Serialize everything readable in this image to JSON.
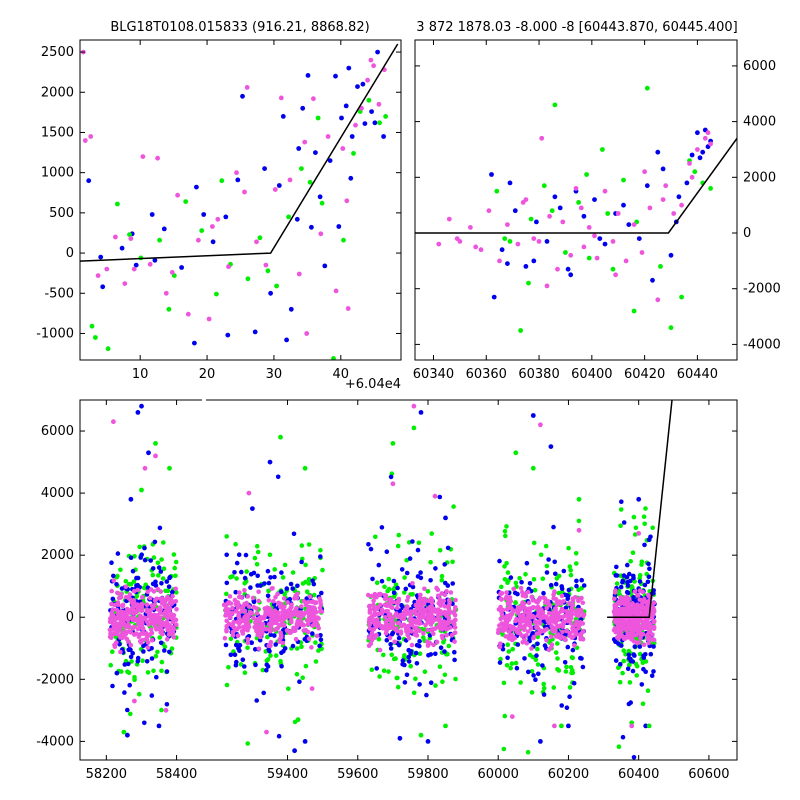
{
  "colors": {
    "blue": "#0000ee",
    "green": "#00ee00",
    "magenta": "#ee55dd",
    "model": "#000000",
    "frame": "#000000"
  },
  "chart_data": [
    {
      "type": "scatter",
      "title": "BLG18T0108.015833 (916.21, 8868.82)",
      "x_offset_label": "+6.04e4",
      "xlim": [
        1,
        49
      ],
      "ylim": [
        -1330,
        2650
      ],
      "xticks": [
        10,
        20,
        30,
        40
      ],
      "yticks": [
        -1000,
        -500,
        0,
        500,
        1000,
        1500,
        2000,
        2500
      ],
      "y_axis_side": "left",
      "grid": false,
      "model_line": {
        "x": [
          1,
          29.5,
          48.5
        ],
        "y": [
          -100,
          0,
          2600
        ]
      },
      "series": [
        {
          "color": "blue",
          "x": [
            2.3,
            4.4,
            7.3,
            9.4,
            11.8,
            13.6,
            16.2,
            18.4,
            20.9,
            22.8,
            24.6,
            25.3,
            27.2,
            29.5,
            30.8,
            31.4,
            32.6,
            33.5,
            34.3,
            35.6,
            36.2,
            37.6,
            38.4,
            39.2,
            40.1,
            40.8,
            41.5,
            42.5,
            43.6,
            44.6,
            45.5,
            46.4,
            4.1,
            8.8,
            12.2,
            19.5,
            23.1,
            28.6,
            31.9,
            35.1,
            36.9,
            39.7,
            41.7,
            43.3,
            45.1,
            18.1,
            33.7,
            41.2
          ],
          "y": [
            900,
            -420,
            60,
            -150,
            480,
            300,
            -180,
            820,
            140,
            450,
            910,
            1950,
            -980,
            -500,
            840,
            1700,
            -700,
            420,
            1800,
            320,
            1250,
            -160,
            1150,
            2200,
            1680,
            1830,
            930,
            2070,
            1610,
            1760,
            2500,
            1450,
            -50,
            240,
            -90,
            480,
            -1020,
            1050,
            -1080,
            2210,
            700,
            330,
            1450,
            2100,
            1620,
            -1120,
            1300,
            2300
          ]
        },
        {
          "color": "green",
          "x": [
            2.8,
            5.2,
            6.6,
            8.4,
            10.1,
            12.9,
            14.3,
            16.8,
            19.2,
            21.4,
            23.5,
            26.1,
            27.9,
            30.4,
            32.2,
            34.1,
            35.4,
            37.2,
            38.9,
            40.4,
            41.9,
            42.9,
            44.2,
            45.8,
            46.7,
            3.3,
            15.1,
            22.2,
            29.1,
            36.6
          ],
          "y": [
            -910,
            -1190,
            610,
            230,
            -60,
            160,
            -700,
            640,
            280,
            -510,
            -140,
            -320,
            190,
            -410,
            450,
            1050,
            880,
            620,
            -1310,
            160,
            1240,
            1760,
            1900,
            1620,
            1700,
            -1050,
            -280,
            900,
            -220,
            1680
          ]
        },
        {
          "color": "magenta",
          "x": [
            1.5,
            2.6,
            3.7,
            5.0,
            6.3,
            7.7,
            8.6,
            10.4,
            11.5,
            12.6,
            13.9,
            15.6,
            17.2,
            18.7,
            20.3,
            21.6,
            23.2,
            24.4,
            26.0,
            27.4,
            28.8,
            30.2,
            31.1,
            32.4,
            33.8,
            34.6,
            35.9,
            37.0,
            38.1,
            39.3,
            40.3,
            41.1,
            42.2,
            43.1,
            44.0,
            44.9,
            45.7,
            46.5,
            1.8,
            9.1,
            14.8,
            25.6,
            34.9,
            40.9,
            44.5,
            20.8
          ],
          "y": [
            2500,
            1450,
            -280,
            -200,
            200,
            -380,
            180,
            1200,
            -140,
            1180,
            -500,
            720,
            -760,
            160,
            -820,
            420,
            -170,
            1000,
            2060,
            140,
            -150,
            790,
            1930,
            910,
            -260,
            1380,
            1920,
            240,
            1450,
            -470,
            1300,
            -690,
            1590,
            1800,
            2150,
            2330,
            1850,
            2280,
            1400,
            -200,
            -240,
            760,
            -1000,
            650,
            2400,
            330
          ]
        }
      ]
    },
    {
      "type": "scatter",
      "title": "3 872 1878.03 -8.000 -8 [60443.870, 60445.400]",
      "xlim": [
        60333,
        60455
      ],
      "ylim": [
        -4560,
        6930
      ],
      "xticks": [
        60340,
        60360,
        60380,
        60400,
        60420,
        60440
      ],
      "yticks": [
        -4000,
        -2000,
        0,
        2000,
        4000,
        6000
      ],
      "y_axis_side": "right",
      "grid": false,
      "model_line": {
        "x": [
          60333,
          60429,
          60455
        ],
        "y": [
          0,
          0,
          3400
        ]
      },
      "series": [
        {
          "color": "blue",
          "x": [
            60362,
            60366,
            60371,
            60375,
            60379,
            60383,
            60388,
            60392,
            60397,
            60401,
            60405,
            60409,
            60414,
            60418,
            60423,
            60427,
            60432,
            60436,
            60440,
            60443,
            60444,
            60363,
            60369,
            60378,
            60386,
            60394,
            60403,
            60412,
            60421,
            60430,
            60438,
            60442,
            60445,
            60368,
            60391,
            60425,
            60441,
            60433
          ],
          "y": [
            2100,
            -600,
            800,
            -1200,
            400,
            -300,
            900,
            -1500,
            600,
            1200,
            -400,
            700,
            300,
            -200,
            -1700,
            2300,
            400,
            1800,
            3600,
            3700,
            3100,
            -2300,
            1800,
            -1000,
            1300,
            1500,
            -200,
            1000,
            1700,
            -800,
            2800,
            2900,
            3300,
            -1100,
            -1300,
            2900,
            2700,
            1300
          ]
        },
        {
          "color": "green",
          "x": [
            60364,
            60369,
            60373,
            60377,
            60382,
            60386,
            60390,
            60395,
            60399,
            60404,
            60408,
            60412,
            60417,
            60421,
            60426,
            60430,
            60434,
            60439,
            60442,
            60445,
            60385,
            60367,
            60376,
            60398,
            60416,
            60437,
            60406
          ],
          "y": [
            1500,
            -300,
            -3500,
            500,
            1700,
            4600,
            -700,
            1100,
            -900,
            3000,
            -1300,
            1900,
            400,
            5200,
            -1200,
            -3400,
            -2300,
            2200,
            1800,
            1600,
            800,
            -200,
            -1800,
            2100,
            -2800,
            2600,
            700
          ]
        },
        {
          "color": "magenta",
          "x": [
            60342,
            60346,
            60350,
            60354,
            60358,
            60361,
            60365,
            60368,
            60372,
            60375,
            60378,
            60381,
            60384,
            60387,
            60389,
            60392,
            60394,
            60397,
            60399,
            60402,
            60405,
            60408,
            60410,
            60413,
            60416,
            60419,
            60422,
            60425,
            60428,
            60431,
            60434,
            60437,
            60440,
            60443,
            60445,
            60349,
            60356,
            60374,
            60383,
            60396,
            60409,
            60420,
            60438,
            60444,
            60380,
            60401,
            60427
          ],
          "y": [
            -400,
            500,
            -300,
            200,
            -600,
            800,
            -1000,
            300,
            -400,
            1200,
            -200,
            3400,
            600,
            -1300,
            400,
            -800,
            1600,
            -500,
            200,
            -900,
            1500,
            -300,
            700,
            -1000,
            300,
            -700,
            900,
            -2400,
            1700,
            700,
            1000,
            2500,
            3000,
            3400,
            3200,
            -200,
            -500,
            1100,
            -1900,
            900,
            -1500,
            2200,
            2000,
            3600,
            -300,
            -100,
            1200
          ]
        }
      ]
    },
    {
      "type": "scatter",
      "xlim": [
        58125,
        60680
      ],
      "ylim": [
        -4600,
        7000
      ],
      "xticks": [
        58200,
        58400,
        59400,
        59600,
        59800,
        60000,
        60200,
        60400,
        60600
      ],
      "yticks": [
        -4000,
        -2000,
        0,
        2000,
        4000,
        6000
      ],
      "y_axis_side": "left",
      "grid": false,
      "axis_break": {
        "x_before": 58460,
        "x_after": 59180
      },
      "model_line": {
        "x": [
          60310,
          60430,
          60495
        ],
        "y": [
          0,
          0,
          7000
        ]
      },
      "seasons": [
        {
          "x_range": [
            58210,
            58400
          ],
          "y_spread": 2200
        },
        {
          "x_range": [
            59220,
            59500
          ],
          "y_spread": 2300
        },
        {
          "x_range": [
            59630,
            59880
          ],
          "y_spread": 2600
        },
        {
          "x_range": [
            60000,
            60245
          ],
          "y_spread": 2200
        },
        {
          "x_range": [
            60330,
            60445
          ],
          "y_spread": 1800
        }
      ],
      "series": [
        {
          "color": "blue",
          "x": [
            58300,
            58290,
            58270,
            58320,
            58260,
            58350,
            59300,
            59350,
            59420,
            59450,
            59720,
            59780,
            59800,
            59850,
            60100,
            60120,
            60150,
            60200,
            60400,
            60430,
            60420,
            59260,
            58230
          ],
          "y": [
            6800,
            6600,
            3800,
            5300,
            -3800,
            -3500,
            3500,
            5000,
            -4300,
            -4000,
            -3900,
            6600,
            -4000,
            3200,
            6500,
            -4000,
            5500,
            -3500,
            3800,
            2500,
            -3500,
            -1000,
            -1800
          ]
        },
        {
          "color": "green",
          "x": [
            58340,
            58250,
            58300,
            59380,
            59430,
            59450,
            59700,
            59760,
            59780,
            59850,
            60050,
            60100,
            60180,
            60230,
            60380,
            60430,
            58380
          ],
          "y": [
            5600,
            -3700,
            4100,
            5800,
            -3300,
            4800,
            5600,
            6100,
            -3800,
            -3500,
            5300,
            4800,
            -3500,
            3800,
            -3400,
            -3500,
            4800
          ]
        },
        {
          "color": "magenta",
          "x": [
            58220,
            58280,
            58340,
            58370,
            59290,
            59340,
            59470,
            59700,
            59760,
            59820,
            60040,
            60120,
            60160,
            60230,
            60380,
            60400,
            58310
          ],
          "y": [
            6300,
            -2700,
            5200,
            -3000,
            4000,
            -3700,
            -2300,
            4300,
            6800,
            3900,
            -3200,
            6200,
            -3500,
            2800,
            -3500,
            2700,
            4800
          ]
        }
      ]
    }
  ]
}
